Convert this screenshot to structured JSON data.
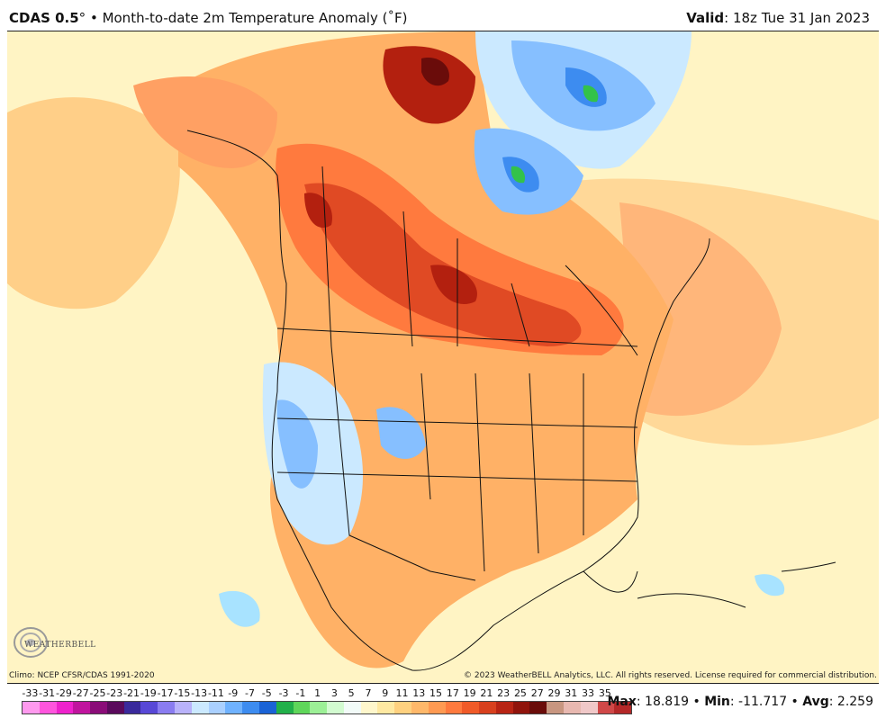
{
  "header": {
    "model": "CDAS 0.5",
    "deg": "°",
    "sep": " • ",
    "product": "Month-to-date 2m Temperature Anomaly (˚F)",
    "valid_label": "Valid",
    "valid_value": ": 18z Tue 31 Jan 2023"
  },
  "footer": {
    "climo": "Climo: NCEP CFSR/CDAS 1991-2020",
    "copyright": "© 2023 WeatherBELL Analytics, LLC. All rights reserved. License required for commercial distribution."
  },
  "logo": {
    "text": "WEATHERBELL"
  },
  "stats": {
    "max_label": "Max",
    "max_value": ": 18.819 • ",
    "min_label": "Min",
    "min_value": ": -11.717 • ",
    "avg_label": "Avg",
    "avg_value": ": 2.259"
  },
  "legend": {
    "labels": [
      "-33",
      "-31",
      "-29",
      "-27",
      "-25",
      "-23",
      "-21",
      "-19",
      "-17",
      "-15",
      "-13",
      "-11",
      "-9",
      "-7",
      "-5",
      "-3",
      "-1",
      "1",
      "3",
      "5",
      "7",
      "9",
      "11",
      "13",
      "15",
      "17",
      "19",
      "21",
      "23",
      "25",
      "27",
      "29",
      "31",
      "33",
      "35"
    ],
    "colors": [
      "#ff99ee",
      "#ff55dd",
      "#ee22cc",
      "#c0149e",
      "#8a0c78",
      "#5a0a5c",
      "#3a2a9c",
      "#5848d6",
      "#8a7cf0",
      "#b9b2fa",
      "#cbe9ff",
      "#aad0ff",
      "#6fb2ff",
      "#3d8cf0",
      "#1a63d6",
      "#22b04a",
      "#5fd65a",
      "#9cf096",
      "#d2fbd0",
      "#f2fbf8",
      "#fff7cc",
      "#ffe9a2",
      "#ffd17f",
      "#ffb86a",
      "#ff9a52",
      "#ff7a3e",
      "#f05a28",
      "#d8401e",
      "#b82414",
      "#90140c",
      "#6a0c0a",
      "#c89680",
      "#e8b8b0",
      "#f0c8c8",
      "#d04848",
      "#b42828"
    ]
  },
  "map_colors": {
    "background": "#f4f5ff",
    "ocean_warm": "#ffe6a0",
    "ocean_mild": "#fff4c4",
    "warm_orange": "#ffb166",
    "hot": "#ff7a3e",
    "very_hot": "#e04a24",
    "extreme": "#b3200f",
    "darkest": "#6a0c0a",
    "cold_light": "#cbe9ff",
    "cold": "#86bfff",
    "cold_deep": "#3d8cf0",
    "green": "#33c24a"
  }
}
